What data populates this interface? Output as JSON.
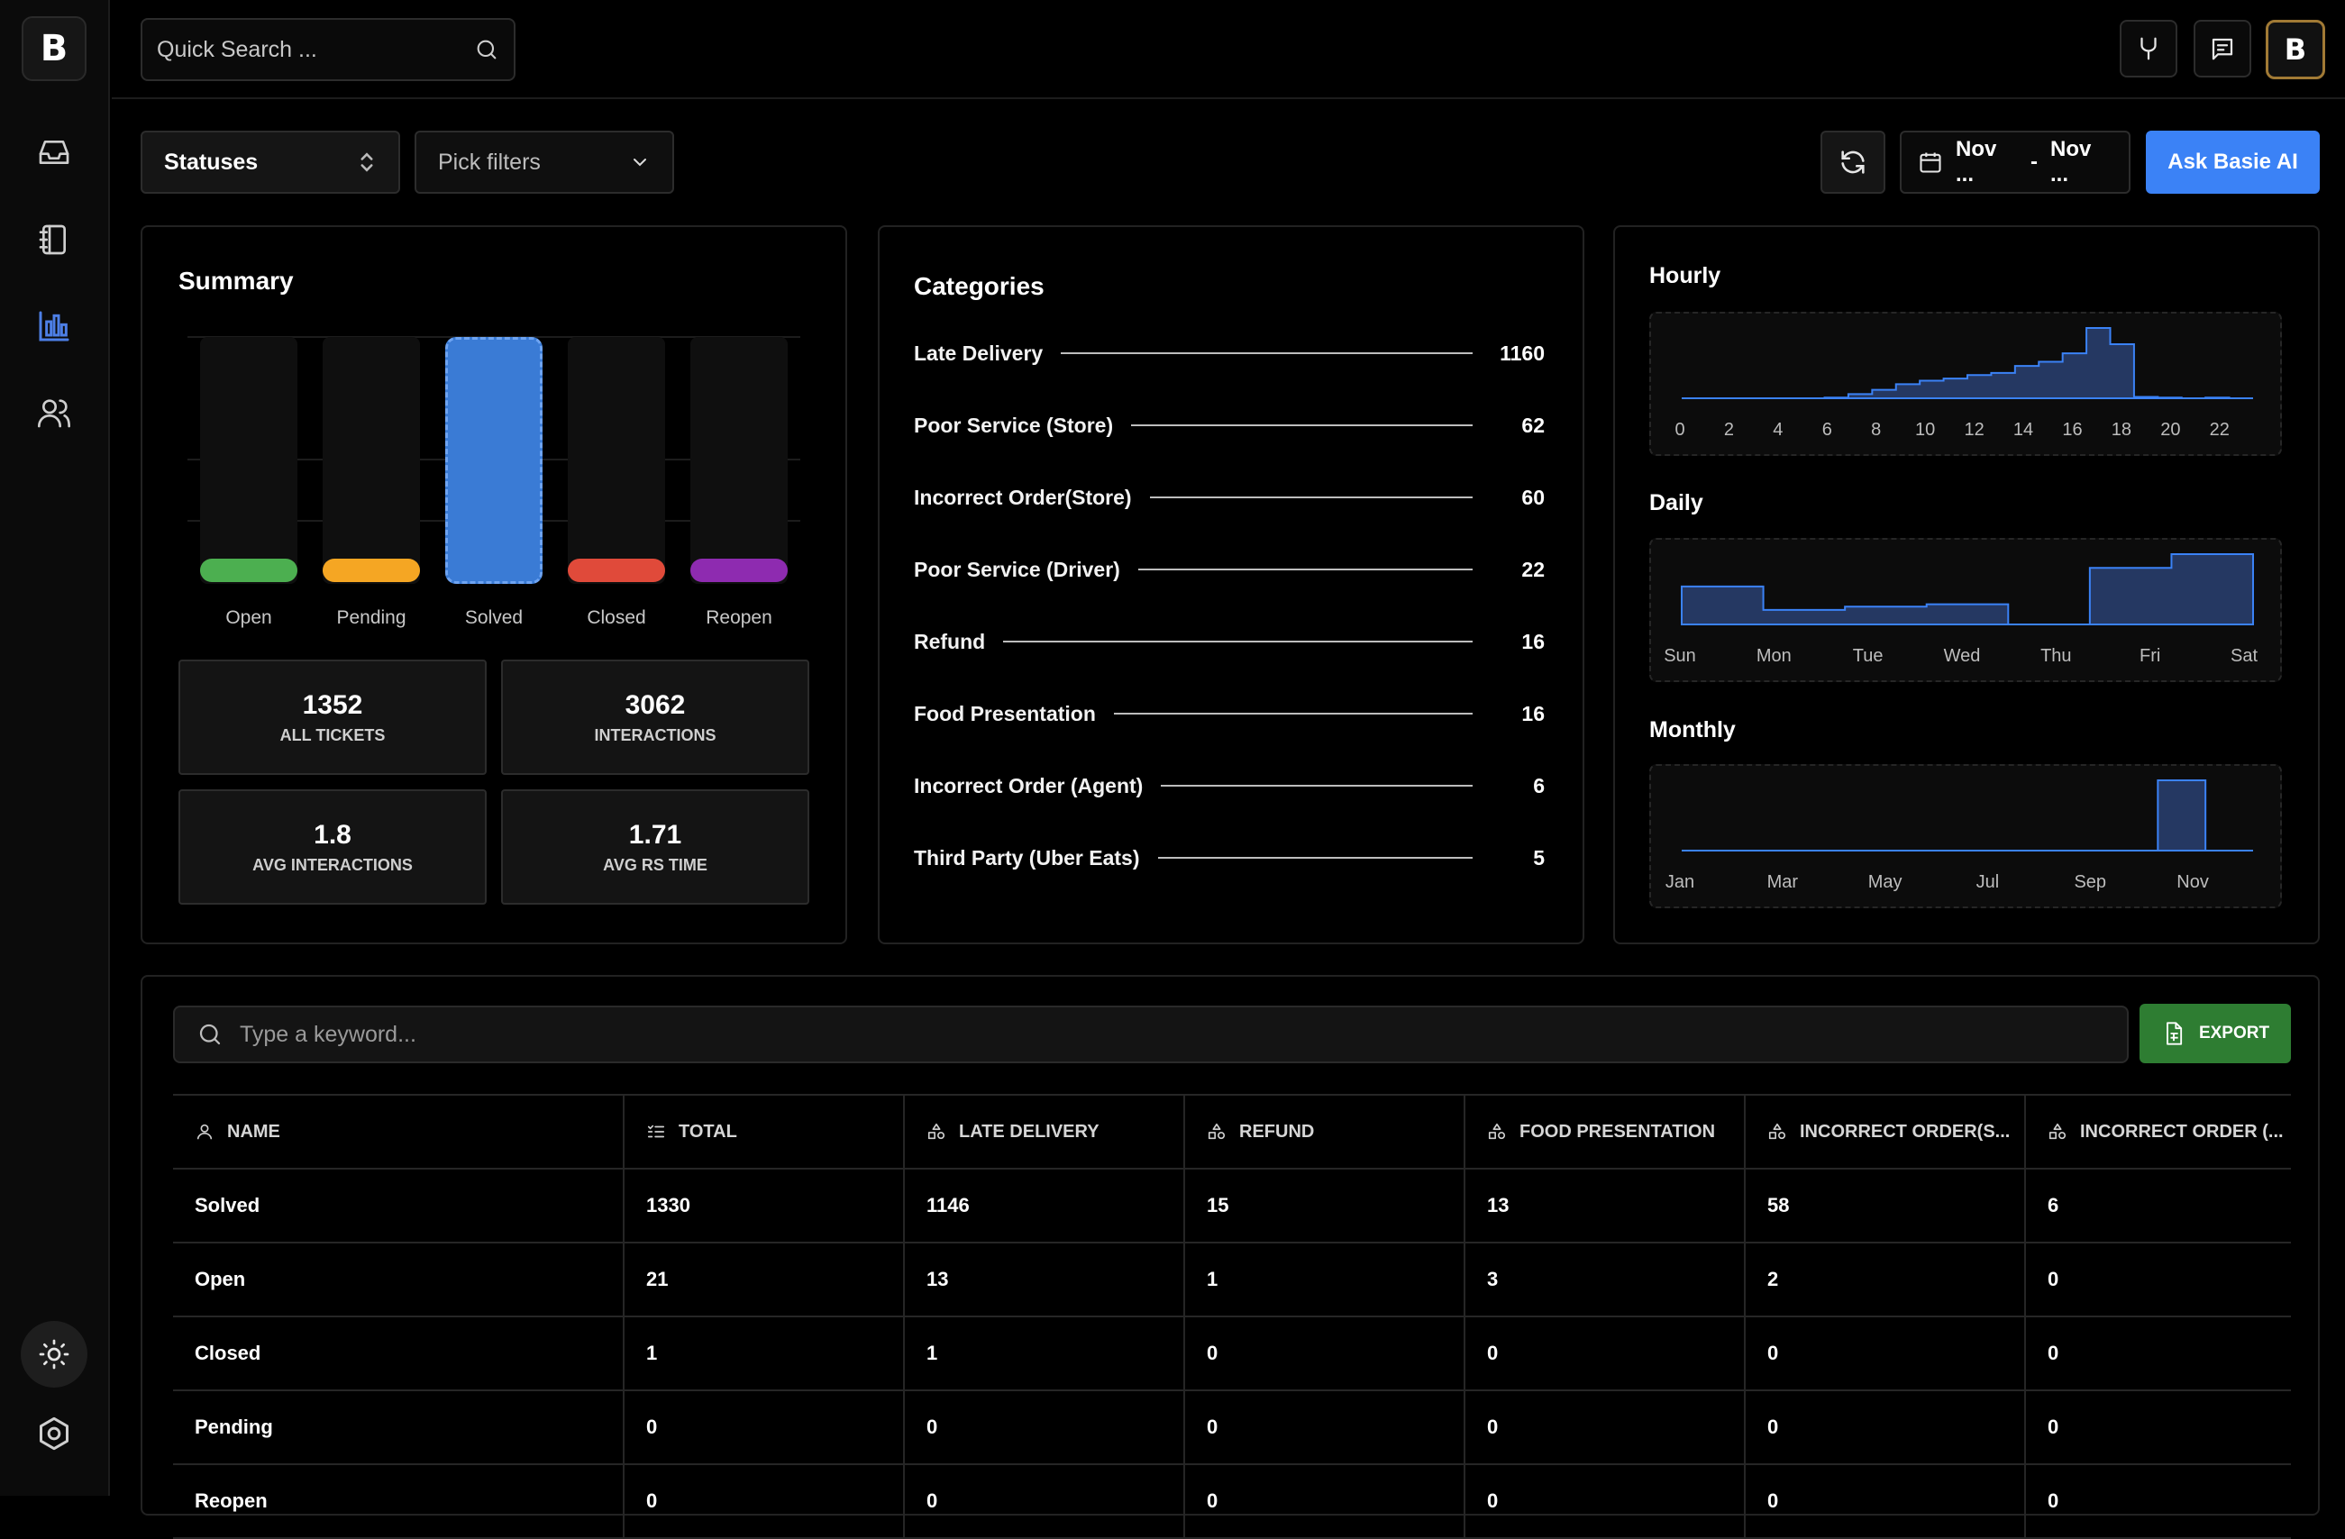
{
  "brand": {
    "logo_letter": "B"
  },
  "sidebar": {
    "nav": [
      {
        "name": "inbox-icon"
      },
      {
        "name": "notebook-icon"
      },
      {
        "name": "bar-chart-icon",
        "active": true
      },
      {
        "name": "users-icon"
      }
    ],
    "theme_icon": "sun-icon",
    "settings_icon": "hexagon-settings-icon"
  },
  "topbar": {
    "search_placeholder": "Quick Search ...",
    "avatar_letter": "B"
  },
  "filters": {
    "statuses_label": "Statuses",
    "pick_filters_placeholder": "Pick filters",
    "date_from": "Nov ...",
    "date_separator": "-",
    "date_to": "Nov ...",
    "ask_label": "Ask Basie AI"
  },
  "summary": {
    "title": "Summary",
    "statuses": [
      {
        "label": "Open",
        "color": "#4caf50",
        "selected": false
      },
      {
        "label": "Pending",
        "color": "#f5a623",
        "selected": false
      },
      {
        "label": "Solved",
        "color": "#3a7bd5",
        "selected": true
      },
      {
        "label": "Closed",
        "color": "#e04a3a",
        "selected": false
      },
      {
        "label": "Reopen",
        "color": "#8e2bb0",
        "selected": false
      }
    ],
    "stats": [
      {
        "value": "1352",
        "label": "ALL TICKETS"
      },
      {
        "value": "3062",
        "label": "INTERACTIONS"
      },
      {
        "value": "1.8",
        "label": "AVG INTERACTIONS"
      },
      {
        "value": "1.71",
        "label": "AVG RS TIME"
      }
    ]
  },
  "categories": {
    "title": "Categories",
    "items": [
      {
        "name": "Late Delivery",
        "value": "1160"
      },
      {
        "name": "Poor Service (Store)",
        "value": "62"
      },
      {
        "name": "Incorrect Order(Store)",
        "value": "60"
      },
      {
        "name": "Poor Service (Driver)",
        "value": "22"
      },
      {
        "name": "Refund",
        "value": "16"
      },
      {
        "name": "Food Presentation",
        "value": "16"
      },
      {
        "name": "Incorrect Order (Agent)",
        "value": "6"
      },
      {
        "name": "Third Party (Uber Eats)",
        "value": "5"
      }
    ]
  },
  "chart_data": [
    {
      "type": "area",
      "title": "Hourly",
      "x": [
        0,
        1,
        2,
        3,
        4,
        5,
        6,
        7,
        8,
        9,
        10,
        11,
        12,
        13,
        14,
        15,
        16,
        17,
        18,
        19,
        20,
        21,
        22,
        23
      ],
      "tick_labels": [
        "0",
        "2",
        "4",
        "6",
        "8",
        "10",
        "12",
        "14",
        "16",
        "18",
        "20",
        "22"
      ],
      "values": [
        0,
        0,
        0,
        0,
        0,
        0,
        1,
        6,
        12,
        20,
        25,
        28,
        33,
        36,
        46,
        52,
        64,
        100,
        77,
        2,
        1,
        0,
        1,
        0
      ],
      "color": "#3b82f6"
    },
    {
      "type": "area",
      "title": "Daily",
      "categories": [
        "Sun",
        "Mon",
        "Tue",
        "Wed",
        "Thu",
        "Fri",
        "Sat"
      ],
      "values": [
        47,
        18,
        22,
        25,
        0,
        70,
        87
      ],
      "color": "#3b82f6"
    },
    {
      "type": "area",
      "title": "Monthly",
      "categories": [
        "Jan",
        "Feb",
        "Mar",
        "Apr",
        "May",
        "Jun",
        "Jul",
        "Aug",
        "Sep",
        "Oct",
        "Nov",
        "Dec"
      ],
      "tick_labels": [
        "Jan",
        "Mar",
        "May",
        "Jul",
        "Sep",
        "Nov"
      ],
      "values": [
        0,
        0,
        0,
        0,
        0,
        0,
        0,
        0,
        0,
        0,
        100,
        0
      ],
      "color": "#3b82f6"
    }
  ],
  "table": {
    "search_placeholder": "Type a keyword...",
    "export_label": "EXPORT",
    "columns": [
      {
        "label": "NAME",
        "icon": "user-icon"
      },
      {
        "label": "TOTAL",
        "icon": "list-check-icon"
      },
      {
        "label": "LATE DELIVERY",
        "icon": "shapes-icon"
      },
      {
        "label": "REFUND",
        "icon": "shapes-icon"
      },
      {
        "label": "FOOD PRESENTATION",
        "icon": "shapes-icon"
      },
      {
        "label": "INCORRECT ORDER(S...",
        "icon": "shapes-icon"
      },
      {
        "label": "INCORRECT ORDER (...",
        "icon": "shapes-icon"
      }
    ],
    "rows": [
      [
        "Solved",
        "1330",
        "1146",
        "15",
        "13",
        "58",
        "6"
      ],
      [
        "Open",
        "21",
        "13",
        "1",
        "3",
        "2",
        "0"
      ],
      [
        "Closed",
        "1",
        "1",
        "0",
        "0",
        "0",
        "0"
      ],
      [
        "Pending",
        "0",
        "0",
        "0",
        "0",
        "0",
        "0"
      ],
      [
        "Reopen",
        "0",
        "0",
        "0",
        "0",
        "0",
        "0"
      ]
    ]
  }
}
